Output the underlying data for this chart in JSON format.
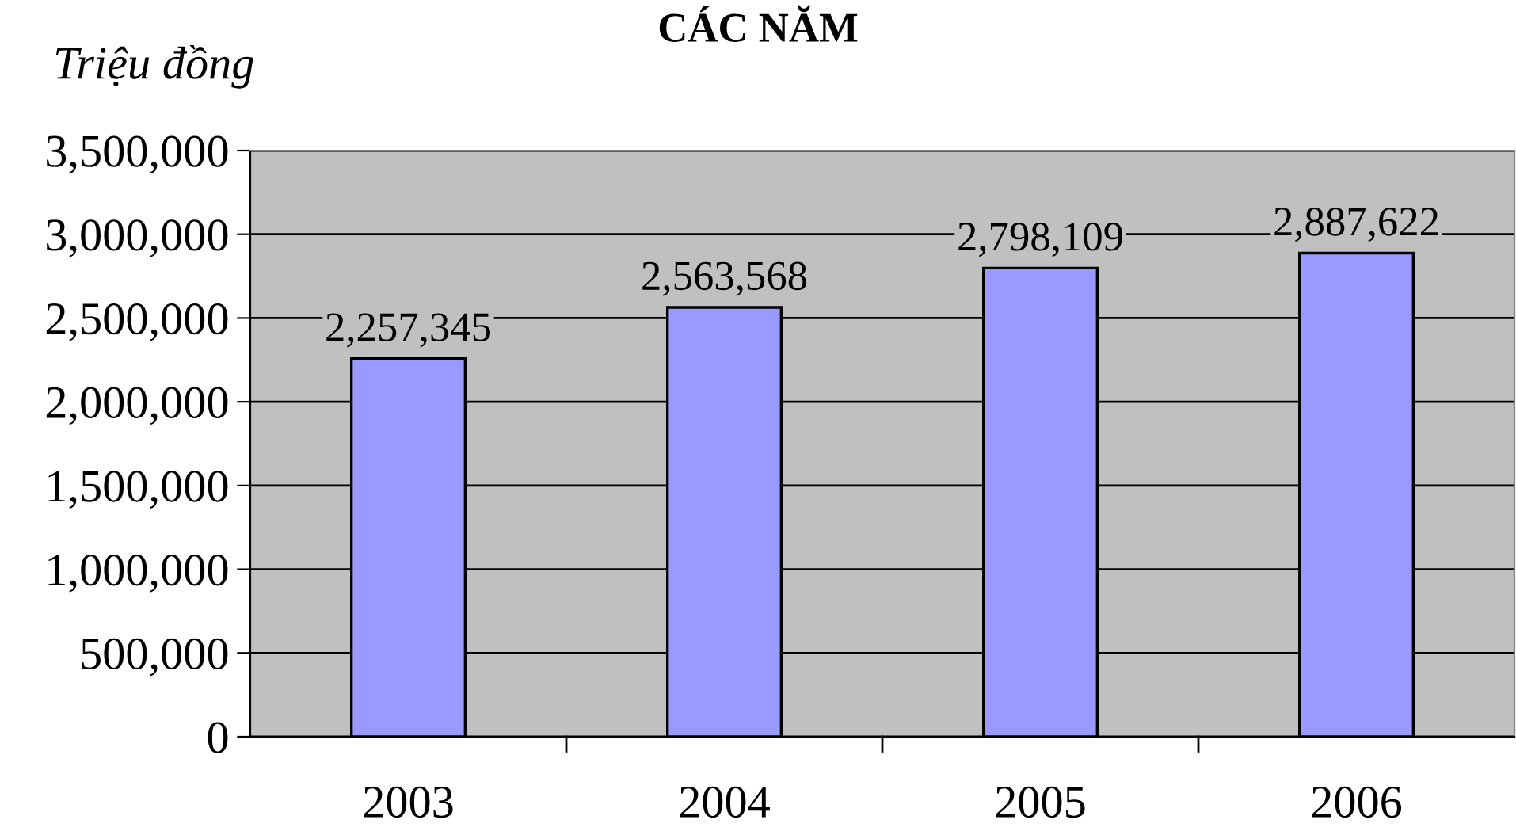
{
  "chart_data": {
    "type": "bar",
    "title": "CÁC NĂM",
    "ylabel": "Triệu đồng",
    "categories": [
      "2003",
      "2004",
      "2005",
      "2006"
    ],
    "values": [
      2257345,
      2563568,
      2798109,
      2887622
    ],
    "color": "#9999ff",
    "data_labels": true,
    "value_labels": [
      "2,257,345",
      "2,563,568",
      "2,798,109",
      "2,887,622"
    ],
    "ylim": [
      0,
      3500000
    ],
    "yticks": [
      {
        "value": 0,
        "label": "0"
      },
      {
        "value": 500000,
        "label": "500,000"
      },
      {
        "value": 1000000,
        "label": "1,000,000"
      },
      {
        "value": 1500000,
        "label": "1,500,000"
      },
      {
        "value": 2000000,
        "label": "2,000,000"
      },
      {
        "value": 2500000,
        "label": "2,500,000"
      },
      {
        "value": 3000000,
        "label": "3,000,000"
      },
      {
        "value": 3500000,
        "label": "3,500,000"
      }
    ],
    "grid": "y",
    "legend": false
  }
}
